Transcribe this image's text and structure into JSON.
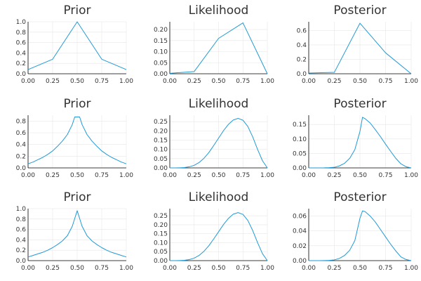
{
  "colors": {
    "line": "#1f9ad6",
    "grid": "#e6e6e6",
    "axis": "#000000",
    "text": "#333333"
  },
  "chart_data": [
    {
      "type": "line",
      "title": "Prior",
      "x": [
        0,
        0.25,
        0.5,
        0.75,
        1
      ],
      "y": [
        0.08,
        0.28,
        1.0,
        0.28,
        0.08
      ],
      "xlim": [
        0,
        1
      ],
      "ylim": [
        0,
        1.0
      ],
      "xticks": [
        "0.00",
        "0.25",
        "0.50",
        "0.75",
        "1.00"
      ],
      "xtick_values": [
        0,
        0.25,
        0.5,
        0.75,
        1
      ],
      "yticks": [
        "0.0",
        "0.2",
        "0.4",
        "0.6",
        "0.8",
        "1.0"
      ],
      "ytick_values": [
        0,
        0.2,
        0.4,
        0.6,
        0.8,
        1.0
      ],
      "grid": true
    },
    {
      "type": "line",
      "title": "Likelihood",
      "x": [
        0,
        0.25,
        0.5,
        0.75,
        1
      ],
      "y": [
        0.002,
        0.01,
        0.16,
        0.23,
        0.0
      ],
      "xlim": [
        0,
        1
      ],
      "ylim": [
        0,
        0.235
      ],
      "xticks": [
        "0.00",
        "0.25",
        "0.50",
        "0.75",
        "1.00"
      ],
      "xtick_values": [
        0,
        0.25,
        0.5,
        0.75,
        1
      ],
      "yticks": [
        "0.00",
        "0.05",
        "0.10",
        "0.15",
        "0.20"
      ],
      "ytick_values": [
        0,
        0.05,
        0.1,
        0.15,
        0.2
      ],
      "grid": true
    },
    {
      "type": "line",
      "title": "Posterior",
      "x": [
        0,
        0.25,
        0.5,
        0.75,
        1
      ],
      "y": [
        0.01,
        0.02,
        0.7,
        0.29,
        0.0
      ],
      "xlim": [
        0,
        1
      ],
      "ylim": [
        0,
        0.72
      ],
      "xticks": [
        "0.00",
        "0.25",
        "0.50",
        "0.75",
        "1.00"
      ],
      "xtick_values": [
        0,
        0.25,
        0.5,
        0.75,
        1
      ],
      "yticks": [
        "0.0",
        "0.2",
        "0.4",
        "0.6"
      ],
      "ytick_values": [
        0,
        0.2,
        0.4,
        0.6
      ],
      "grid": true
    },
    {
      "type": "line",
      "title": "Prior",
      "x": [
        0,
        0.05,
        0.1,
        0.15,
        0.2,
        0.25,
        0.3,
        0.35,
        0.4,
        0.45,
        0.475,
        0.525,
        0.55,
        0.6,
        0.65,
        0.7,
        0.75,
        0.8,
        0.85,
        0.9,
        0.95,
        1
      ],
      "y": [
        0.07,
        0.1,
        0.14,
        0.18,
        0.23,
        0.29,
        0.37,
        0.46,
        0.57,
        0.74,
        0.87,
        0.87,
        0.74,
        0.57,
        0.46,
        0.37,
        0.29,
        0.23,
        0.18,
        0.14,
        0.1,
        0.07
      ],
      "xlim": [
        0,
        1
      ],
      "ylim": [
        0,
        0.9
      ],
      "xticks": [
        "0.00",
        "0.25",
        "0.50",
        "0.75",
        "1.00"
      ],
      "xtick_values": [
        0,
        0.25,
        0.5,
        0.75,
        1
      ],
      "yticks": [
        "0.0",
        "0.2",
        "0.4",
        "0.6",
        "0.8"
      ],
      "ytick_values": [
        0,
        0.2,
        0.4,
        0.6,
        0.8
      ],
      "grid": true
    },
    {
      "type": "line",
      "title": "Likelihood",
      "x": [
        0,
        0.05,
        0.1,
        0.15,
        0.2,
        0.25,
        0.3,
        0.35,
        0.4,
        0.45,
        0.5,
        0.55,
        0.6,
        0.65,
        0.7,
        0.75,
        0.8,
        0.85,
        0.9,
        0.95,
        1
      ],
      "y": [
        0,
        0,
        0.0005,
        0.002,
        0.006,
        0.014,
        0.029,
        0.052,
        0.083,
        0.121,
        0.161,
        0.201,
        0.235,
        0.259,
        0.268,
        0.258,
        0.224,
        0.168,
        0.1,
        0.039,
        0
      ],
      "xlim": [
        0,
        1
      ],
      "ylim": [
        0,
        0.285
      ],
      "xticks": [
        "0.00",
        "0.25",
        "0.50",
        "0.75",
        "1.00"
      ],
      "xtick_values": [
        0,
        0.25,
        0.5,
        0.75,
        1
      ],
      "yticks": [
        "0.00",
        "0.05",
        "0.10",
        "0.15",
        "0.20",
        "0.25"
      ],
      "ytick_values": [
        0,
        0.05,
        0.1,
        0.15,
        0.2,
        0.25
      ],
      "grid": true
    },
    {
      "type": "line",
      "title": "Posterior",
      "x": [
        0,
        0.05,
        0.1,
        0.15,
        0.2,
        0.25,
        0.3,
        0.35,
        0.4,
        0.45,
        0.5,
        0.525,
        0.55,
        0.6,
        0.65,
        0.7,
        0.75,
        0.8,
        0.85,
        0.9,
        0.95,
        1
      ],
      "y": [
        0,
        0,
        0,
        0.0002,
        0.0008,
        0.002,
        0.007,
        0.016,
        0.033,
        0.063,
        0.126,
        0.175,
        0.17,
        0.155,
        0.132,
        0.108,
        0.082,
        0.057,
        0.033,
        0.014,
        0.004,
        0
      ],
      "xlim": [
        0,
        1
      ],
      "ylim": [
        0,
        0.182
      ],
      "xticks": [
        "0.00",
        "0.25",
        "0.50",
        "0.75",
        "1.00"
      ],
      "xtick_values": [
        0,
        0.25,
        0.5,
        0.75,
        1
      ],
      "yticks": [
        "0.00",
        "0.05",
        "0.10",
        "0.15"
      ],
      "ytick_values": [
        0,
        0.05,
        0.1,
        0.15
      ],
      "grid": true
    },
    {
      "type": "line",
      "title": "Prior",
      "x": [
        0,
        0.05,
        0.1,
        0.15,
        0.2,
        0.25,
        0.3,
        0.35,
        0.4,
        0.45,
        0.5,
        0.55,
        0.6,
        0.65,
        0.7,
        0.75,
        0.8,
        0.85,
        0.9,
        0.95,
        1
      ],
      "y": [
        0.07,
        0.1,
        0.13,
        0.16,
        0.2,
        0.25,
        0.31,
        0.38,
        0.48,
        0.66,
        0.96,
        0.66,
        0.48,
        0.38,
        0.31,
        0.25,
        0.2,
        0.16,
        0.13,
        0.1,
        0.07
      ],
      "xlim": [
        0,
        1
      ],
      "ylim": [
        0,
        1.0
      ],
      "xticks": [
        "0.00",
        "0.25",
        "0.50",
        "0.75",
        "1.00"
      ],
      "xtick_values": [
        0,
        0.25,
        0.5,
        0.75,
        1
      ],
      "yticks": [
        "0.0",
        "0.2",
        "0.4",
        "0.6",
        "0.8",
        "1.0"
      ],
      "ytick_values": [
        0,
        0.2,
        0.4,
        0.6,
        0.8,
        1.0
      ],
      "grid": true
    },
    {
      "type": "line",
      "title": "Likelihood",
      "x": [
        0,
        0.05,
        0.1,
        0.15,
        0.2,
        0.25,
        0.3,
        0.35,
        0.4,
        0.45,
        0.5,
        0.55,
        0.6,
        0.65,
        0.7,
        0.75,
        0.8,
        0.85,
        0.9,
        0.95,
        1
      ],
      "y": [
        0,
        0,
        0.0005,
        0.002,
        0.006,
        0.014,
        0.029,
        0.052,
        0.083,
        0.121,
        0.161,
        0.201,
        0.235,
        0.259,
        0.268,
        0.258,
        0.224,
        0.168,
        0.1,
        0.039,
        0
      ],
      "xlim": [
        0,
        1
      ],
      "ylim": [
        0,
        0.29
      ],
      "xticks": [
        "0.00",
        "0.25",
        "0.50",
        "0.75",
        "1.00"
      ],
      "xtick_values": [
        0,
        0.25,
        0.5,
        0.75,
        1
      ],
      "yticks": [
        "0.00",
        "0.05",
        "0.10",
        "0.15",
        "0.20",
        "0.25"
      ],
      "ytick_values": [
        0,
        0.05,
        0.1,
        0.15,
        0.2,
        0.25
      ],
      "grid": true
    },
    {
      "type": "line",
      "title": "Posterior",
      "x": [
        0,
        0.05,
        0.1,
        0.15,
        0.2,
        0.25,
        0.3,
        0.35,
        0.4,
        0.45,
        0.5,
        0.525,
        0.55,
        0.6,
        0.65,
        0.7,
        0.75,
        0.8,
        0.85,
        0.9,
        0.95,
        1
      ],
      "y": [
        0,
        0,
        0,
        0.0001,
        0.0003,
        0.001,
        0.003,
        0.007,
        0.014,
        0.027,
        0.057,
        0.067,
        0.066,
        0.06,
        0.052,
        0.042,
        0.032,
        0.022,
        0.013,
        0.005,
        0.0015,
        0
      ],
      "xlim": [
        0,
        1
      ],
      "ylim": [
        0,
        0.07
      ],
      "xticks": [
        "0.00",
        "0.25",
        "0.50",
        "0.75",
        "1.00"
      ],
      "xtick_values": [
        0,
        0.25,
        0.5,
        0.75,
        1
      ],
      "yticks": [
        "0.00",
        "0.02",
        "0.04",
        "0.06"
      ],
      "ytick_values": [
        0,
        0.02,
        0.04,
        0.06
      ],
      "grid": true
    }
  ]
}
